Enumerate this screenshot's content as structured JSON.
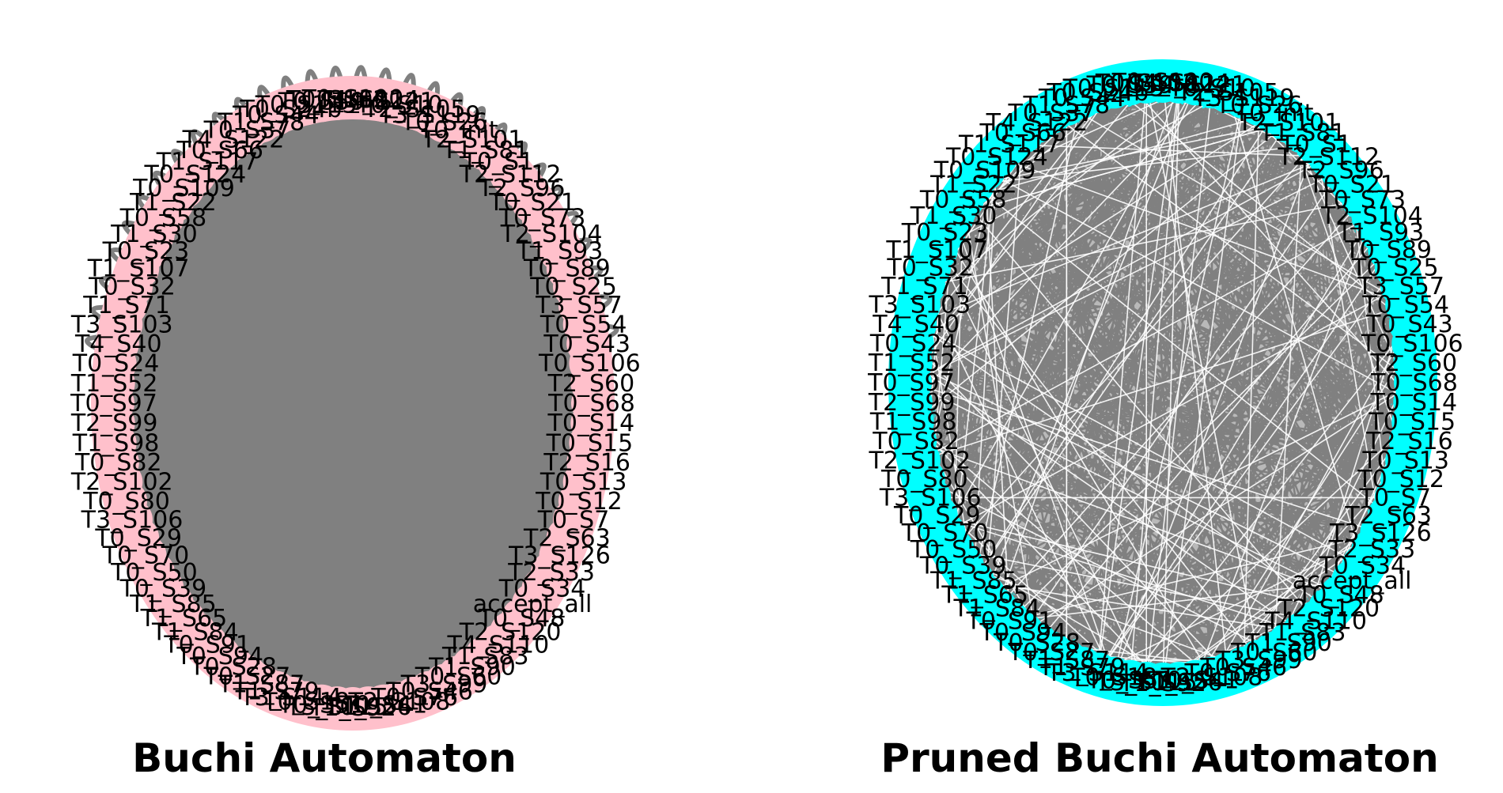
{
  "graphs": [
    {
      "title": "Buchi Automaton",
      "node_color": "#ffc0cb",
      "edge_color": "#808080",
      "interior": "dense"
    },
    {
      "title": "Pruned Buchi Automaton",
      "node_color": "#00ffff",
      "edge_color": "#808080",
      "interior": "sparse"
    }
  ],
  "node_labels": [
    "T0_S100",
    "T4_S124",
    "T4_S121",
    "T0_S10",
    "T2_S105",
    "T3_S119",
    "T0_S26",
    "T0_init",
    "T2_S101",
    "T1_S81",
    "T0_S1",
    "T2_S112",
    "T2_S96",
    "T0_S21",
    "T0_S73",
    "T2_S104",
    "T1_S93",
    "T0_S89",
    "T0_S25",
    "T3_S57",
    "T0_S54",
    "T0_S43",
    "T0_S106",
    "T2_S60",
    "T0_S68",
    "T0_S14",
    "T0_S15",
    "T2_S16",
    "T0_S13",
    "T0_S12",
    "T0_S7",
    "T2_S63",
    "T3_S126",
    "T2_S33",
    "T0_S34",
    "accept_all",
    "T0_S48",
    "T2_S120",
    "T4_S110",
    "T1_S83",
    "T1_S90",
    "T0_S60",
    "T3_S99",
    "T0_S46",
    "T0_S76",
    "T2_S108",
    "T0_S41",
    "T0_S56",
    "T1_S92",
    "T3_S115",
    "T0_S51",
    "T0_S18",
    "T3_S114",
    "T1_S79",
    "T1_S87",
    "T0_S27",
    "T0_S28",
    "T0_S94",
    "T0_S91",
    "T1_S84",
    "T1_S65",
    "T1_S85",
    "T0_S39",
    "T0_S50",
    "T0_S70",
    "T0_S29",
    "T3_S106",
    "T0_S80",
    "T2_S102",
    "T0_S82",
    "T1_S98",
    "T2_S99",
    "T0_S97",
    "T1_S52",
    "T0_S24",
    "T4_S40",
    "T3_S103",
    "T1_S71",
    "T0_S32",
    "T1_S107",
    "T0_S23",
    "T1_S30",
    "T0_S58",
    "T1_S22",
    "T0_S109",
    "T0_S124",
    "T1_S117",
    "T0_S66",
    "T4_S122",
    "T0_S37",
    "T1_S78",
    "T0_S44",
    "T0_S24b",
    "T0_S115",
    "T0_S59",
    "T0_S102"
  ]
}
